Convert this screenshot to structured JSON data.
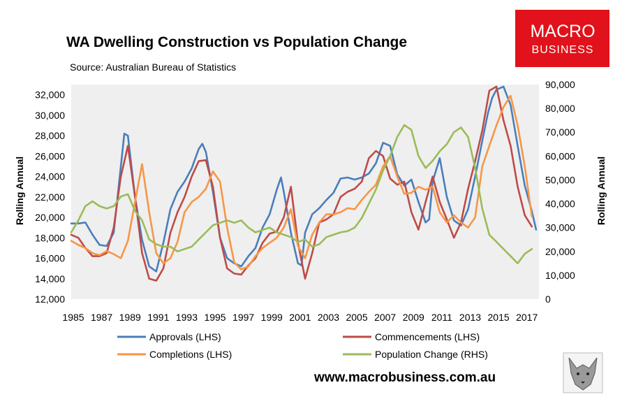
{
  "brand": {
    "logo_line1": "MACRO",
    "logo_line2": "BUSINESS",
    "website": "www.macrobusiness.com.au",
    "logo_color": "#e1121b"
  },
  "chart_data": {
    "type": "line",
    "title": "WA Dwelling Construction vs Population Change",
    "subtitle": "Source: Australian Bureau of Statistics",
    "ylabel_left": "Rolling Annual",
    "ylabel_right": "Rolling Annual",
    "x_tick_labels": [
      "1985",
      "1987",
      "1989",
      "1991",
      "1993",
      "1995",
      "1997",
      "1999",
      "2001",
      "2003",
      "2005",
      "2007",
      "2009",
      "2011",
      "2013",
      "2015",
      "2017"
    ],
    "x_range": [
      1985,
      2018
    ],
    "y_left_range": [
      12000,
      33000
    ],
    "y_left_ticks": [
      12000,
      14000,
      16000,
      18000,
      20000,
      22000,
      24000,
      26000,
      28000,
      30000,
      32000
    ],
    "y_left_tick_labels": [
      "12,000",
      "14,000",
      "16,000",
      "18,000",
      "20,000",
      "22,000",
      "24,000",
      "26,000",
      "28,000",
      "30,000",
      "32,000"
    ],
    "y_right_range": [
      0,
      90000
    ],
    "y_right_ticks": [
      0,
      10000,
      20000,
      30000,
      40000,
      50000,
      60000,
      70000,
      80000,
      90000
    ],
    "y_right_tick_labels": [
      "0",
      "10,000",
      "20,000",
      "30,000",
      "40,000",
      "50,000",
      "60,000",
      "70,000",
      "80,000",
      "90,000"
    ],
    "series": [
      {
        "name": "Approvals (LHS)",
        "axis": "left",
        "color": "#4a7ebb",
        "x": [
          1985,
          1985.5,
          1986,
          1986.5,
          1987,
          1987.5,
          1988,
          1988.5,
          1988.75,
          1989,
          1989.5,
          1990,
          1990.5,
          1991,
          1991.5,
          1992,
          1992.5,
          1993,
          1993.5,
          1994,
          1994.25,
          1994.5,
          1995,
          1995.5,
          1996,
          1996.5,
          1997,
          1997.5,
          1998,
          1998.5,
          1999,
          1999.5,
          1999.8,
          2000,
          2000.5,
          2001,
          2001.25,
          2001.5,
          2002,
          2002.5,
          2003,
          2003.5,
          2004,
          2004.5,
          2005,
          2005.5,
          2006,
          2006.5,
          2007,
          2007.5,
          2008,
          2008.5,
          2009,
          2009.5,
          2010,
          2010.25,
          2010.5,
          2011,
          2011.5,
          2012,
          2012.5,
          2013,
          2013.5,
          2014,
          2014.4,
          2014.7,
          2015,
          2015.5,
          2016,
          2016.5,
          2017,
          2017.5,
          2017.8
        ],
        "y": [
          19400,
          19400,
          19500,
          18300,
          17300,
          17200,
          18500,
          25000,
          28200,
          28000,
          22000,
          17800,
          15200,
          14700,
          17500,
          20800,
          22500,
          23500,
          24800,
          26700,
          27200,
          26400,
          22500,
          18000,
          16000,
          15500,
          15200,
          16200,
          17000,
          19000,
          20300,
          22700,
          23900,
          22500,
          18500,
          15500,
          15300,
          18500,
          20300,
          20900,
          21700,
          22400,
          23800,
          23900,
          23700,
          23900,
          24300,
          25300,
          27300,
          27000,
          24200,
          23100,
          23700,
          21500,
          19500,
          19800,
          23500,
          25800,
          22000,
          19700,
          19200,
          20800,
          24000,
          27500,
          30200,
          31700,
          32500,
          32800,
          31000,
          27000,
          23100,
          20600,
          18800
        ]
      },
      {
        "name": "Commencements (LHS)",
        "axis": "left",
        "color": "#be4b48",
        "x": [
          1985,
          1985.5,
          1986,
          1986.5,
          1987,
          1987.5,
          1988,
          1988.5,
          1989,
          1989.25,
          1989.5,
          1990,
          1990.5,
          1991,
          1991.5,
          1992,
          1992.5,
          1993,
          1993.5,
          1994,
          1994.5,
          1995,
          1995.5,
          1996,
          1996.5,
          1997,
          1997.5,
          1998,
          1998.5,
          1999,
          1999.5,
          2000,
          2000.5,
          2001,
          2001.5,
          2002,
          2002.5,
          2003,
          2003.5,
          2004,
          2004.5,
          2005,
          2005.5,
          2006,
          2006.5,
          2007,
          2007.5,
          2008,
          2008.5,
          2009,
          2009.5,
          2010,
          2010.5,
          2011,
          2011.5,
          2012,
          2012.5,
          2013,
          2013.5,
          2014,
          2014.5,
          2015,
          2015.5,
          2016,
          2016.5,
          2017,
          2017.5
        ],
        "y": [
          18300,
          18000,
          17000,
          16200,
          16200,
          16500,
          19000,
          24000,
          27000,
          24500,
          22000,
          16500,
          14000,
          13800,
          15000,
          18500,
          20500,
          22000,
          24000,
          25500,
          25600,
          23000,
          18000,
          15000,
          14500,
          14400,
          15300,
          16000,
          17500,
          18400,
          18600,
          20000,
          23000,
          17500,
          14000,
          16500,
          19500,
          19800,
          20300,
          22000,
          22500,
          22800,
          23500,
          25800,
          26500,
          26000,
          23800,
          23200,
          23500,
          20500,
          18800,
          21500,
          24000,
          21500,
          19800,
          18000,
          19500,
          22800,
          25500,
          28500,
          32400,
          32800,
          29500,
          27000,
          23000,
          20200,
          19100
        ]
      },
      {
        "name": "Completions (LHS)",
        "axis": "left",
        "color": "#f79646",
        "x": [
          1985,
          1985.5,
          1986,
          1986.5,
          1987,
          1987.5,
          1988,
          1988.5,
          1989,
          1989.5,
          1990,
          1990.5,
          1991,
          1991.5,
          1992,
          1992.5,
          1993,
          1993.5,
          1994,
          1994.5,
          1995,
          1995.5,
          1996,
          1996.5,
          1997,
          1997.5,
          1998,
          1998.5,
          1999,
          1999.5,
          2000,
          2000.5,
          2001,
          2001.5,
          2002,
          2002.5,
          2003,
          2003.5,
          2004,
          2004.5,
          2005,
          2005.5,
          2006,
          2006.5,
          2007,
          2007.5,
          2008,
          2008.5,
          2009,
          2009.5,
          2010,
          2010.5,
          2011,
          2011.5,
          2012,
          2012.5,
          2013,
          2013.5,
          2014,
          2014.5,
          2015,
          2015.5,
          2016,
          2016.5,
          2017,
          2017.5
        ],
        "y": [
          17700,
          17300,
          17000,
          16500,
          16300,
          16700,
          16400,
          16000,
          17700,
          21500,
          25200,
          20500,
          16500,
          15500,
          16000,
          17600,
          20500,
          21500,
          22000,
          22800,
          24500,
          23500,
          19000,
          15600,
          14900,
          15200,
          16200,
          17000,
          17500,
          18000,
          19000,
          20800,
          17200,
          16000,
          18300,
          19500,
          20300,
          20300,
          20500,
          20900,
          20800,
          21700,
          22500,
          23200,
          25000,
          26000,
          24000,
          22300,
          22400,
          23000,
          22700,
          23000,
          20500,
          19500,
          20200,
          19500,
          19000,
          20000,
          25000,
          27000,
          29000,
          30800,
          31900,
          29000,
          25000,
          20100
        ]
      },
      {
        "name": "Population Change (RHS)",
        "axis": "right",
        "color": "#9bbb59",
        "x": [
          1985,
          1985.5,
          1986,
          1986.5,
          1987,
          1987.5,
          1988,
          1988.5,
          1989,
          1989.5,
          1990,
          1990.5,
          1991,
          1991.5,
          1992,
          1992.5,
          1993,
          1993.5,
          1994,
          1994.5,
          1995,
          1995.5,
          1996,
          1996.5,
          1997,
          1997.5,
          1998,
          1998.5,
          1999,
          1999.5,
          2000,
          2000.5,
          2001,
          2001.5,
          2002,
          2002.5,
          2003,
          2003.5,
          2004,
          2004.5,
          2005,
          2005.5,
          2006,
          2006.5,
          2007,
          2007.5,
          2008,
          2008.5,
          2009,
          2009.5,
          2010,
          2010.5,
          2011,
          2011.5,
          2012,
          2012.5,
          2013,
          2013.5,
          2014,
          2014.5,
          2015,
          2015.5,
          2016,
          2016.5,
          2017,
          2017.5
        ],
        "y": [
          28000,
          33000,
          39000,
          41000,
          39000,
          38000,
          39000,
          43000,
          44000,
          37000,
          33000,
          25000,
          23000,
          22000,
          22000,
          20000,
          21000,
          22000,
          25000,
          28000,
          31000,
          32000,
          33000,
          32000,
          33000,
          30000,
          28000,
          29000,
          30000,
          28000,
          27000,
          26000,
          24000,
          25000,
          22000,
          23000,
          26000,
          27000,
          28000,
          28500,
          30000,
          34000,
          40000,
          46000,
          54000,
          60000,
          68000,
          73000,
          71000,
          60000,
          55000,
          58000,
          62000,
          65000,
          70000,
          72000,
          68000,
          55000,
          38000,
          27000,
          24000,
          21000,
          18000,
          15000,
          19000,
          21000
        ]
      }
    ]
  }
}
